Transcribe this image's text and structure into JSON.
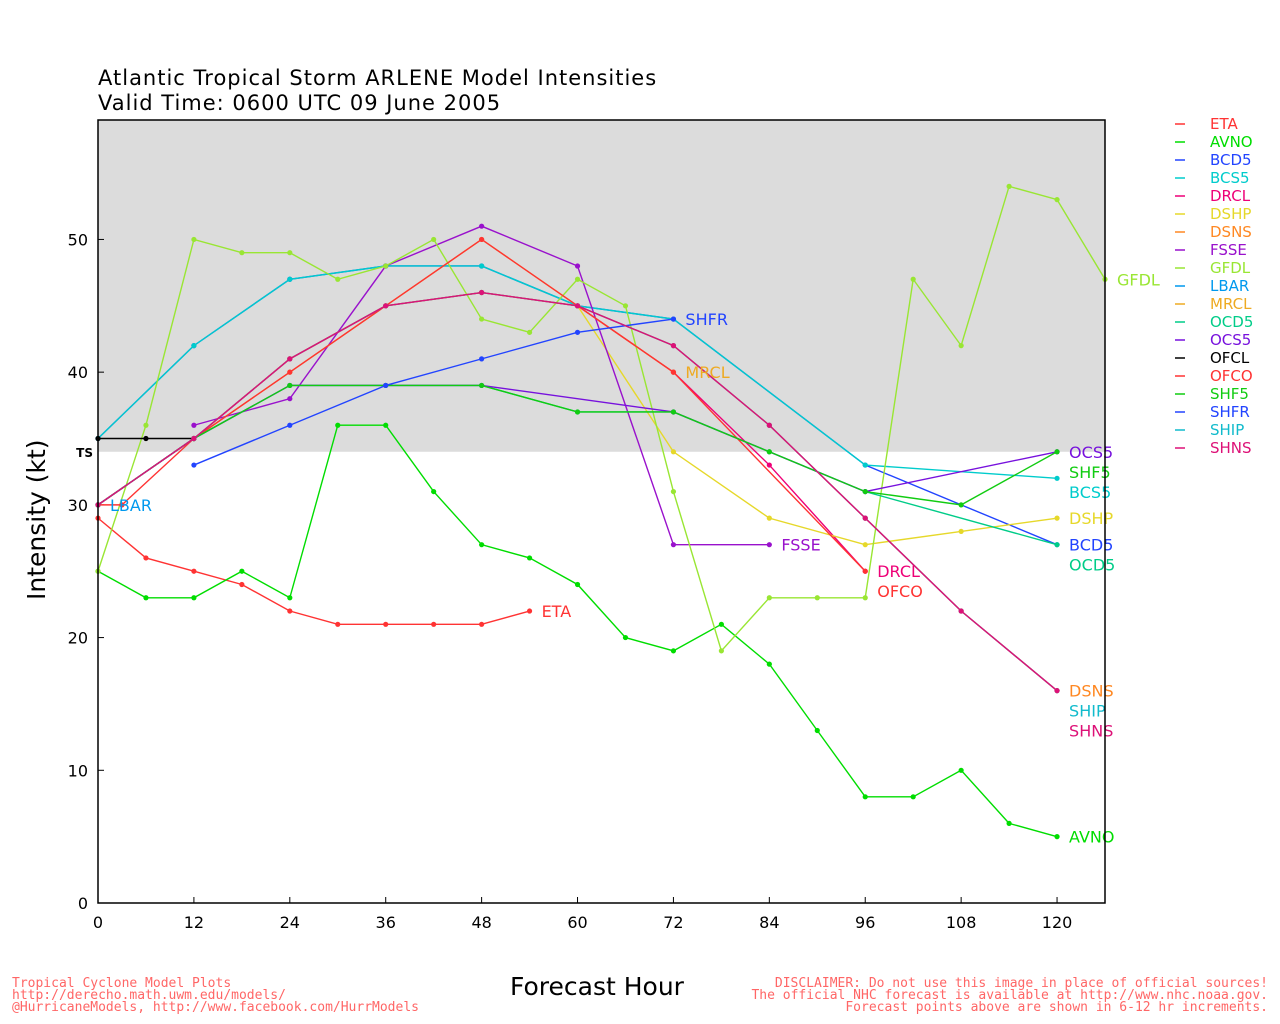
{
  "chart_data": {
    "type": "line",
    "title": "Atlantic Tropical Storm ARLENE Model Intensities",
    "subtitle": "Valid Time: 0600 UTC 09 June 2005",
    "xlabel": "Forecast Hour",
    "ylabel": "Intensity (kt)",
    "xlim": [
      0,
      126
    ],
    "ylim": [
      0,
      59
    ],
    "xticks": [
      0,
      12,
      24,
      36,
      48,
      60,
      72,
      84,
      96,
      108,
      120
    ],
    "yticks": [
      0,
      10,
      20,
      30,
      40,
      50
    ],
    "threshold": {
      "label": "TS",
      "value": 34
    },
    "legend_position": "right",
    "series": [
      {
        "name": "ETA",
        "color": "#ff3333",
        "label": true,
        "points": [
          [
            0,
            29
          ],
          [
            6,
            26
          ],
          [
            12,
            25
          ],
          [
            18,
            24
          ],
          [
            24,
            22
          ],
          [
            30,
            21
          ],
          [
            36,
            21
          ],
          [
            42,
            21
          ],
          [
            48,
            21
          ],
          [
            54,
            22
          ]
        ]
      },
      {
        "name": "AVNO",
        "color": "#00dd00",
        "label": true,
        "points": [
          [
            0,
            25
          ],
          [
            6,
            23
          ],
          [
            12,
            23
          ],
          [
            18,
            25
          ],
          [
            24,
            23
          ],
          [
            30,
            36
          ],
          [
            36,
            36
          ],
          [
            42,
            31
          ],
          [
            48,
            27
          ],
          [
            54,
            26
          ],
          [
            60,
            24
          ],
          [
            66,
            20
          ],
          [
            72,
            19
          ],
          [
            78,
            21
          ],
          [
            84,
            18
          ],
          [
            90,
            13
          ],
          [
            96,
            8
          ],
          [
            102,
            8
          ],
          [
            108,
            10
          ],
          [
            114,
            6
          ],
          [
            120,
            5
          ]
        ]
      },
      {
        "name": "BCD5",
        "color": "#2244ff",
        "label": true,
        "points": [
          [
            0,
            35
          ],
          [
            12,
            42
          ],
          [
            24,
            47
          ],
          [
            36,
            48
          ],
          [
            48,
            48
          ],
          [
            60,
            45
          ],
          [
            72,
            44
          ],
          [
            96,
            33
          ],
          [
            120,
            27
          ]
        ]
      },
      {
        "name": "BCS5",
        "color": "#00cccc",
        "label": true,
        "points": [
          [
            0,
            35
          ],
          [
            12,
            42
          ],
          [
            24,
            47
          ],
          [
            36,
            48
          ],
          [
            48,
            48
          ],
          [
            60,
            45
          ],
          [
            72,
            44
          ],
          [
            96,
            33
          ],
          [
            120,
            32
          ]
        ]
      },
      {
        "name": "DRCL",
        "color": "#ee0077",
        "label": true,
        "points": [
          [
            0,
            30
          ],
          [
            12,
            35
          ],
          [
            24,
            41
          ],
          [
            36,
            45
          ],
          [
            48,
            46
          ],
          [
            60,
            45
          ],
          [
            72,
            40
          ],
          [
            84,
            33
          ],
          [
            96,
            25
          ]
        ]
      },
      {
        "name": "DSHP",
        "color": "#e6d82a",
        "label": true,
        "points": [
          [
            0,
            30
          ],
          [
            12,
            35
          ],
          [
            24,
            41
          ],
          [
            36,
            45
          ],
          [
            48,
            46
          ],
          [
            60,
            45
          ],
          [
            72,
            34
          ],
          [
            84,
            29
          ],
          [
            96,
            27
          ],
          [
            108,
            28
          ],
          [
            120,
            29
          ]
        ]
      },
      {
        "name": "DSNS",
        "color": "#ff8822",
        "label": true,
        "points": [
          [
            0,
            30
          ],
          [
            12,
            35
          ],
          [
            24,
            41
          ],
          [
            36,
            45
          ],
          [
            48,
            46
          ],
          [
            60,
            45
          ],
          [
            72,
            42
          ],
          [
            84,
            36
          ],
          [
            96,
            29
          ],
          [
            108,
            22
          ],
          [
            120,
            16
          ]
        ]
      },
      {
        "name": "FSSE",
        "color": "#9911cc",
        "label": true,
        "points": [
          [
            12,
            36
          ],
          [
            24,
            38
          ],
          [
            36,
            48
          ],
          [
            48,
            51
          ],
          [
            60,
            48
          ],
          [
            72,
            27
          ],
          [
            84,
            27
          ]
        ]
      },
      {
        "name": "GFDL",
        "color": "#99e633",
        "label": true,
        "points": [
          [
            0,
            25
          ],
          [
            6,
            36
          ],
          [
            12,
            50
          ],
          [
            18,
            49
          ],
          [
            24,
            49
          ],
          [
            30,
            47
          ],
          [
            36,
            48
          ],
          [
            42,
            50
          ],
          [
            48,
            44
          ],
          [
            54,
            43
          ],
          [
            60,
            47
          ],
          [
            66,
            45
          ],
          [
            72,
            31
          ],
          [
            78,
            19
          ],
          [
            84,
            23
          ],
          [
            90,
            23
          ],
          [
            96,
            23
          ],
          [
            102,
            47
          ],
          [
            108,
            42
          ],
          [
            114,
            54
          ],
          [
            120,
            53
          ],
          [
            126,
            47
          ]
        ]
      },
      {
        "name": "LBAR",
        "color": "#0099ee",
        "label": true,
        "points": [
          [
            0,
            30
          ]
        ]
      },
      {
        "name": "MRCL",
        "color": "#eeaa22",
        "label": true,
        "points": [
          [
            0,
            30
          ],
          [
            12,
            35
          ],
          [
            24,
            40
          ],
          [
            36,
            45
          ],
          [
            48,
            50
          ],
          [
            60,
            45
          ],
          [
            72,
            40
          ]
        ]
      },
      {
        "name": "OCD5",
        "color": "#00cc88",
        "label": true,
        "points": [
          [
            0,
            30
          ],
          [
            12,
            35
          ],
          [
            24,
            39
          ],
          [
            36,
            39
          ],
          [
            48,
            39
          ],
          [
            60,
            37
          ],
          [
            72,
            37
          ],
          [
            84,
            34
          ],
          [
            96,
            31
          ],
          [
            120,
            27
          ]
        ]
      },
      {
        "name": "OCS5",
        "color": "#7711dd",
        "label": true,
        "points": [
          [
            0,
            30
          ],
          [
            12,
            35
          ],
          [
            24,
            39
          ],
          [
            36,
            39
          ],
          [
            48,
            39
          ],
          [
            72,
            37
          ],
          [
            96,
            31
          ],
          [
            120,
            34
          ]
        ]
      },
      {
        "name": "OFCL",
        "color": "#000000",
        "label": false,
        "points": [
          [
            0,
            35
          ],
          [
            6,
            35
          ],
          [
            12,
            35
          ]
        ]
      },
      {
        "name": "OFCO",
        "color": "#ff3333",
        "label": true,
        "points": [
          [
            0,
            30
          ],
          [
            3,
            30
          ],
          [
            12,
            35
          ],
          [
            24,
            40
          ],
          [
            36,
            45
          ],
          [
            48,
            50
          ],
          [
            60,
            45
          ],
          [
            72,
            40
          ],
          [
            96,
            25
          ]
        ]
      },
      {
        "name": "SHF5",
        "color": "#11cc11",
        "label": true,
        "points": [
          [
            0,
            30
          ],
          [
            12,
            35
          ],
          [
            24,
            39
          ],
          [
            36,
            39
          ],
          [
            48,
            39
          ],
          [
            60,
            37
          ],
          [
            72,
            37
          ],
          [
            84,
            34
          ],
          [
            96,
            31
          ],
          [
            108,
            30
          ],
          [
            120,
            34
          ]
        ]
      },
      {
        "name": "SHFR",
        "color": "#2244ff",
        "label": true,
        "points": [
          [
            12,
            33
          ],
          [
            24,
            36
          ],
          [
            36,
            39
          ],
          [
            48,
            41
          ],
          [
            60,
            43
          ],
          [
            72,
            44
          ]
        ]
      },
      {
        "name": "SHIP",
        "color": "#11bbcc",
        "label": true,
        "points": [
          [
            0,
            30
          ],
          [
            12,
            35
          ],
          [
            24,
            41
          ],
          [
            36,
            45
          ],
          [
            48,
            46
          ],
          [
            60,
            45
          ],
          [
            72,
            42
          ],
          [
            84,
            36
          ],
          [
            96,
            29
          ],
          [
            108,
            22
          ],
          [
            120,
            16
          ]
        ]
      },
      {
        "name": "SHNS",
        "color": "#dd1177",
        "label": true,
        "points": [
          [
            0,
            30
          ],
          [
            12,
            35
          ],
          [
            24,
            41
          ],
          [
            36,
            45
          ],
          [
            48,
            46
          ],
          [
            60,
            45
          ],
          [
            72,
            42
          ],
          [
            84,
            36
          ],
          [
            96,
            29
          ],
          [
            108,
            22
          ],
          [
            120,
            16
          ]
        ]
      }
    ]
  },
  "footer": {
    "left": [
      "Tropical Cyclone Model Plots",
      "http://derecho.math.uwm.edu/models/",
      "@HurricaneModels, http://www.facebook.com/HurrModels"
    ],
    "right": [
      "DISCLAIMER: Do not use this image in place of official sources!",
      "The official NHC forecast is available at http://www.nhc.noaa.gov.",
      "Forecast points above are shown in 6-12 hr increments."
    ]
  }
}
